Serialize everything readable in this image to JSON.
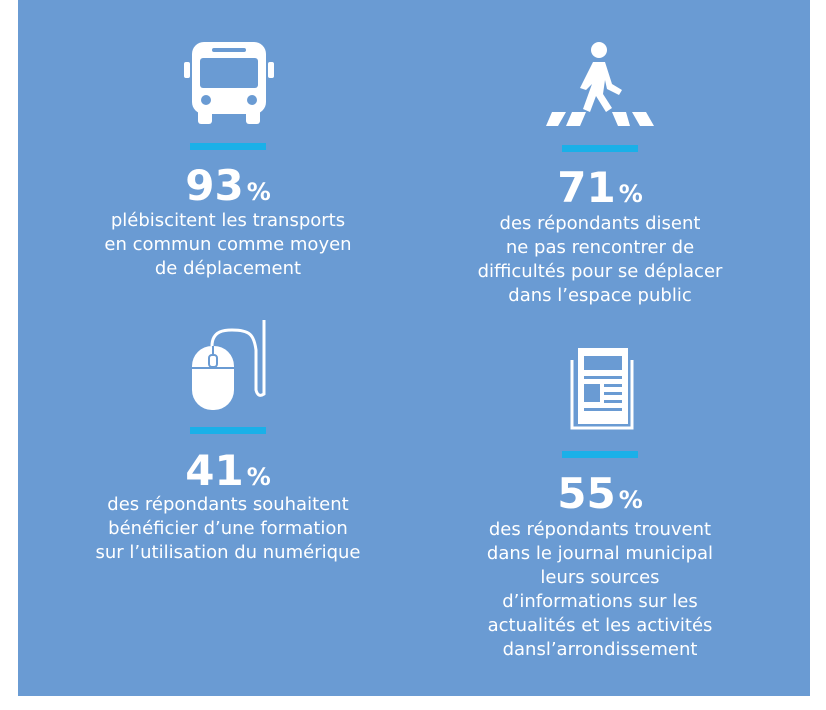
{
  "stats": [
    {
      "value": 93,
      "unit": "%",
      "lines": [
        "plébiscitent les transports",
        "en commun comme moyen",
        "de déplacement"
      ]
    },
    {
      "value": 71,
      "unit": "%",
      "lines": [
        "des répondants disent",
        "ne pas rencontrer de",
        "difficultés pour se déplacer",
        "dans l’espace public"
      ]
    },
    {
      "value": 41,
      "unit": "%",
      "lines": [
        "des répondants souhaitent",
        "bénéficier d’une formation",
        "sur l’utilisation du numérique"
      ]
    },
    {
      "value": 55,
      "unit": "%",
      "lines": [
        "des répondants trouvent",
        "dans le journal municipal",
        "leurs sources",
        "d’informations sur les",
        "actualités et les activités",
        "dansl’arrondissement"
      ]
    }
  ]
}
